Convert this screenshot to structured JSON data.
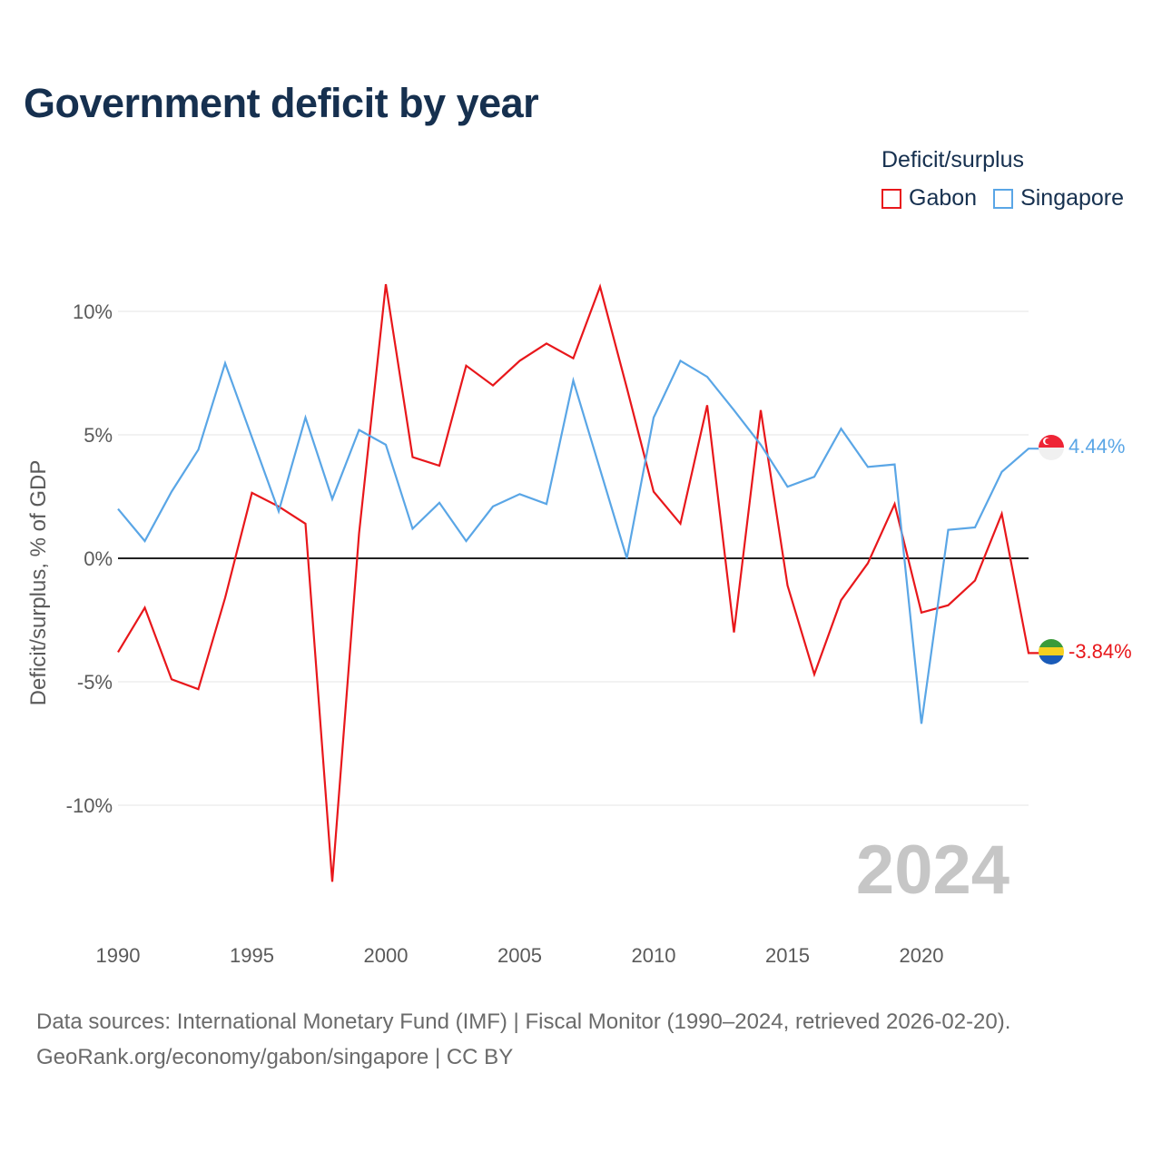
{
  "page": {
    "title": "Government deficit by year",
    "legend_title": "Deficit/surplus",
    "footer_line1": "Data sources: International Monetary Fund (IMF) | Fiscal Monitor (1990–2024, retrieved 2026-02-20).",
    "footer_line2": "GeoRank.org/economy/gabon/singapore | CC BY"
  },
  "chart_data": {
    "type": "line",
    "title": "Government deficit by year",
    "xlabel": "",
    "ylabel": "Deficit/surplus, % of GDP",
    "xlim": [
      1990,
      2024
    ],
    "ylim": [
      -15,
      12
    ],
    "x_ticks": [
      1990,
      1995,
      2000,
      2005,
      2010,
      2015,
      2020
    ],
    "x_tick_labels": [
      "1990",
      "1995",
      "2000",
      "2005",
      "2010",
      "2015",
      "2020"
    ],
    "y_ticks": [
      10,
      5,
      0,
      -5,
      -10
    ],
    "y_tick_labels": [
      "10%",
      "5%",
      "0%",
      "-5%",
      "-10%"
    ],
    "watermark_year": "2024",
    "legend_position": "top-right",
    "x": [
      1990,
      1991,
      1992,
      1993,
      1994,
      1995,
      1996,
      1997,
      1998,
      1999,
      2000,
      2001,
      2002,
      2003,
      2004,
      2005,
      2006,
      2007,
      2008,
      2009,
      2010,
      2011,
      2012,
      2013,
      2014,
      2015,
      2016,
      2017,
      2018,
      2019,
      2020,
      2021,
      2022,
      2023,
      2024
    ],
    "series": [
      {
        "name": "Gabon",
        "color": "#e8171b",
        "flag": "gabon-flag-icon",
        "end_label": "-3.84%",
        "values": [
          -3.8,
          -2.0,
          -4.9,
          -5.3,
          -1.6,
          2.65,
          2.1,
          1.4,
          -13.1,
          1.0,
          11.1,
          4.1,
          3.75,
          7.8,
          7.0,
          8.0,
          8.7,
          8.1,
          11.0,
          6.9,
          2.7,
          1.4,
          6.2,
          -3.0,
          6.0,
          -1.1,
          -4.7,
          -1.7,
          -0.2,
          2.2,
          -2.2,
          -1.9,
          -0.9,
          1.8,
          -3.84
        ]
      },
      {
        "name": "Singapore",
        "color": "#5aa6e6",
        "flag": "singapore-flag-icon",
        "end_label": "4.44%",
        "values": [
          2.0,
          0.7,
          2.7,
          4.4,
          7.9,
          4.9,
          1.9,
          5.7,
          2.4,
          5.2,
          4.6,
          1.2,
          2.25,
          0.7,
          2.1,
          2.6,
          2.2,
          7.2,
          3.6,
          0.0,
          5.7,
          8.0,
          7.35,
          6.0,
          4.6,
          2.9,
          3.3,
          5.25,
          3.7,
          3.8,
          -6.7,
          1.15,
          1.25,
          3.5,
          4.44
        ]
      }
    ]
  }
}
